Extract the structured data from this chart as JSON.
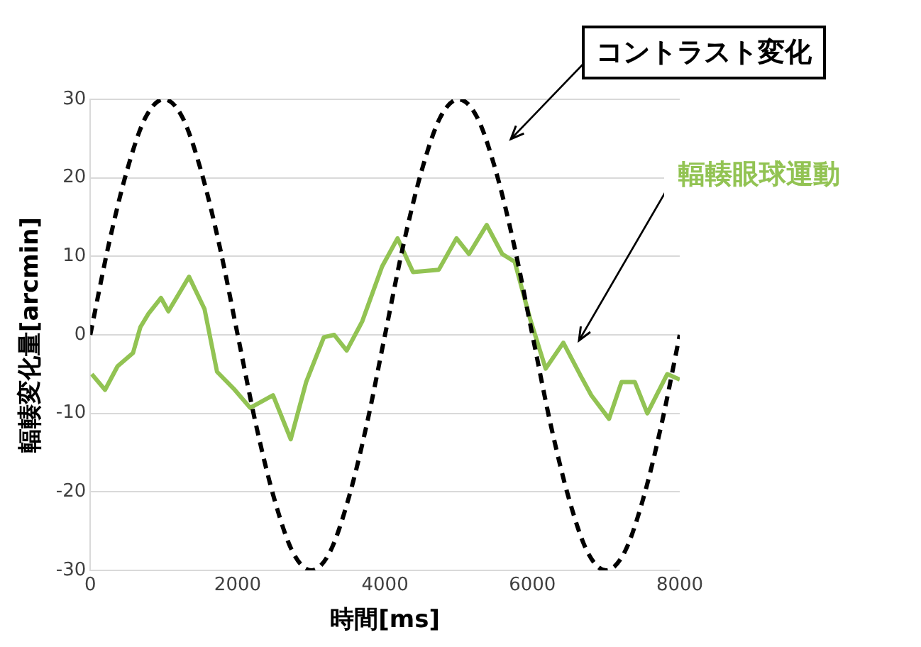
{
  "chart_data": {
    "type": "line",
    "xlabel": "時間[ms]",
    "ylabel": "輻輳変化量[arcmin]",
    "xlim": [
      0,
      8000
    ],
    "xticks": [
      0,
      2000,
      4000,
      6000,
      8000
    ],
    "ylim": [
      -30,
      30
    ],
    "yticks": [
      -30,
      -20,
      -10,
      0,
      10,
      20,
      30
    ],
    "grid": "y",
    "legend": false,
    "marker": "none",
    "series": [
      {
        "name": "コントラスト変化",
        "color": "#000000",
        "line_style": "dashed",
        "x": [
          0,
          250,
          500,
          750,
          1000,
          1250,
          1500,
          1750,
          2000,
          2250,
          2500,
          2750,
          3000,
          3250,
          3500,
          3750,
          4000,
          4250,
          4500,
          4750,
          5000,
          5250,
          5500,
          5750,
          6000,
          6250,
          6500,
          6750,
          7000,
          7250,
          7500,
          7750,
          8000
        ],
        "values": [
          0,
          11.5,
          21,
          27.7,
          30,
          27.7,
          21,
          11.5,
          0,
          -11.5,
          -21,
          -27.7,
          -30,
          -27.7,
          -21,
          -11.5,
          0,
          11.5,
          21,
          27.7,
          30,
          27.7,
          21,
          11.5,
          0,
          -11.5,
          -21,
          -27.7,
          -30,
          -27.7,
          -21,
          -11.5,
          0
        ]
      },
      {
        "name": "輻輳眼球運動",
        "color": "#92c353",
        "line_style": "solid",
        "x": [
          20,
          200,
          370,
          580,
          680,
          790,
          960,
          1060,
          1340,
          1550,
          1720,
          1960,
          2170,
          2480,
          2720,
          2930,
          3170,
          3310,
          3480,
          3690,
          3960,
          4170,
          4380,
          4730,
          4970,
          5140,
          5380,
          5590,
          5760,
          5970,
          6180,
          6420,
          6660,
          6800,
          7040,
          7210,
          7390,
          7560,
          7830,
          8000
        ],
        "values": [
          -5,
          -7,
          -4,
          -2.3,
          1,
          2.7,
          4.7,
          3,
          7.4,
          3.3,
          -4.7,
          -7,
          -9.3,
          -7.7,
          -13.3,
          -6,
          -0.3,
          0,
          -2,
          1.7,
          8.7,
          12.3,
          8,
          8.3,
          12.3,
          10.3,
          14,
          10.3,
          9.3,
          2,
          -4.3,
          -1,
          -5.3,
          -7.7,
          -10.7,
          -6,
          -6,
          -10,
          -5,
          -5.7
        ]
      }
    ]
  }
}
